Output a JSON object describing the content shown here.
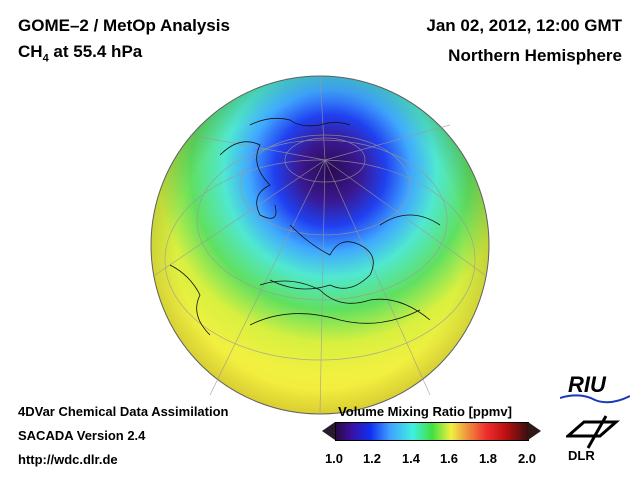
{
  "header": {
    "title_main": "GOME–2 / MetOp Analysis",
    "species": "CH",
    "species_sub": "4",
    "level": " at 55.4 hPa",
    "date": "Jan 02, 2012, 12:00 GMT",
    "region": "Northern Hemisphere"
  },
  "footer": {
    "line1": "4DVar Chemical Data Assimilation",
    "line2": "SACADA Version 2.4",
    "line3": "http://wdc.dlr.de"
  },
  "colorbar": {
    "title": "Volume Mixing Ratio [ppmv]",
    "ticks": [
      "1.0",
      "1.2",
      "1.4",
      "1.6",
      "1.8",
      "2.0"
    ],
    "min": 1.0,
    "max": 2.0
  },
  "logos": {
    "riu": "RIU",
    "dlr": "DLR"
  }
}
